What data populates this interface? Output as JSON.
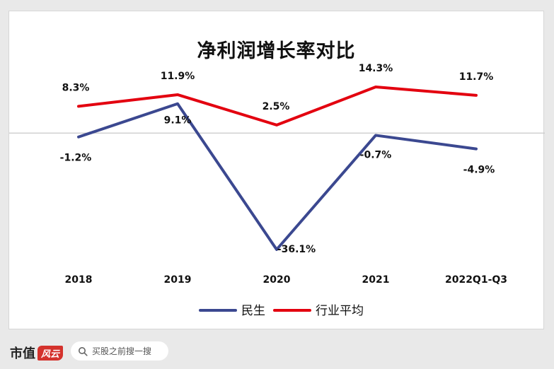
{
  "chart_data": {
    "type": "line",
    "title": "净利润增长率对比",
    "categories": [
      "2018",
      "2019",
      "2020",
      "2021",
      "2022Q1-Q3"
    ],
    "series": [
      {
        "name": "民生",
        "color": "#3b4890",
        "values": [
          -1.2,
          9.1,
          -36.1,
          -0.7,
          -4.9
        ],
        "labels": [
          "-1.2%",
          "9.1%",
          "-36.1%",
          "-0.7%",
          "-4.9%"
        ]
      },
      {
        "name": "行业平均",
        "color": "#e3000f",
        "values": [
          8.3,
          11.9,
          2.5,
          14.3,
          11.7
        ],
        "labels": [
          "8.3%",
          "11.9%",
          "2.5%",
          "14.3%",
          "11.7%"
        ]
      }
    ],
    "ylim": [
      -36.1,
      14.3
    ],
    "grid": false,
    "zero_line": true,
    "legend_position": "bottom"
  },
  "footer": {
    "logo_text": "市值",
    "logo_mark": "风云",
    "search_placeholder": "买股之前搜一搜"
  }
}
